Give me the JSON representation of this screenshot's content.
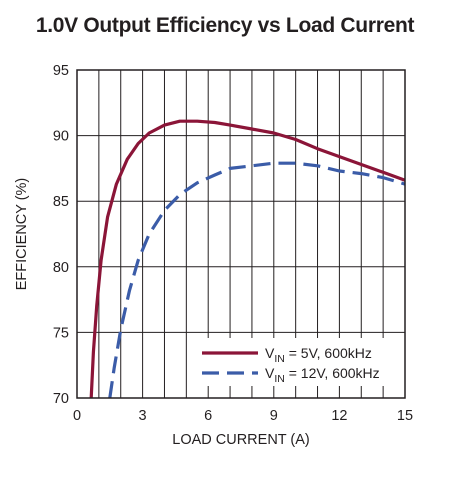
{
  "chart_data": {
    "type": "line",
    "title": "1.0V Output Efficiency vs Load Current",
    "xlabel": "LOAD CURRENT (A)",
    "ylabel": "EFFICIENCY (%)",
    "xlim": [
      0,
      15
    ],
    "ylim": [
      70,
      95
    ],
    "xticks": [
      0,
      3,
      6,
      9,
      12,
      15
    ],
    "yticks": [
      70,
      75,
      80,
      85,
      90,
      95
    ],
    "x_tick_labels": [
      "0",
      "3",
      "6",
      "9",
      "12",
      "15"
    ],
    "y_tick_labels": [
      "70",
      "75",
      "80",
      "85",
      "90",
      "95"
    ],
    "grid": true,
    "legend_position": "bottom-right",
    "series": [
      {
        "legend_main": "V",
        "legend_sub": "IN",
        "legend_rest": " = 5V, 600kHz",
        "color": "#8b1538",
        "dash": "solid",
        "x": [
          0.65,
          0.75,
          0.9,
          1.1,
          1.4,
          1.8,
          2.3,
          2.8,
          3.3,
          4.0,
          4.7,
          5.5,
          6.3,
          7.0,
          8.0,
          9.0,
          10.0,
          11.0,
          12.0,
          13.0,
          14.0,
          15.0
        ],
        "y": [
          70.0,
          73.5,
          77.0,
          80.5,
          83.8,
          86.3,
          88.2,
          89.4,
          90.2,
          90.8,
          91.1,
          91.1,
          91.0,
          90.8,
          90.5,
          90.2,
          89.7,
          89.0,
          88.4,
          87.8,
          87.2,
          86.6
        ]
      },
      {
        "legend_main": "V",
        "legend_sub": "IN",
        "legend_rest": " = 12V, 600kHz",
        "color": "#3b5ca8",
        "dash": "dashed",
        "x": [
          1.5,
          1.7,
          2.0,
          2.4,
          2.8,
          3.3,
          4.0,
          4.7,
          5.5,
          6.3,
          7.0,
          8.0,
          9.0,
          10.0,
          11.0,
          12.0,
          13.0,
          14.0,
          15.0
        ],
        "y": [
          70.0,
          72.3,
          75.2,
          78.2,
          80.5,
          82.5,
          84.3,
          85.5,
          86.4,
          87.0,
          87.5,
          87.7,
          87.9,
          87.9,
          87.7,
          87.3,
          87.1,
          86.8,
          86.3
        ]
      }
    ]
  }
}
